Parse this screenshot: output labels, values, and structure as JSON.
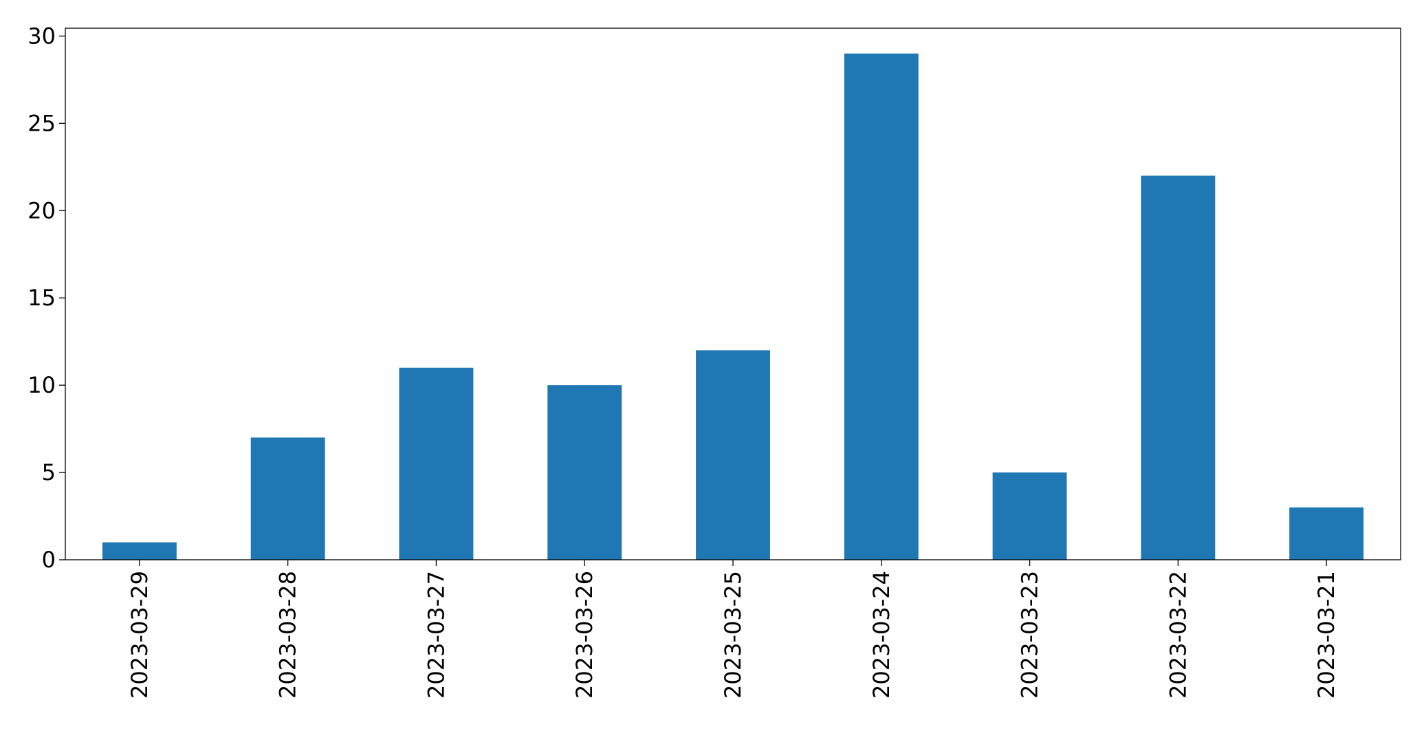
{
  "chart_data": {
    "type": "bar",
    "categories": [
      "2023-03-29",
      "2023-03-28",
      "2023-03-27",
      "2023-03-26",
      "2023-03-25",
      "2023-03-24",
      "2023-03-23",
      "2023-03-22",
      "2023-03-21"
    ],
    "values": [
      1,
      7,
      11,
      10,
      12,
      29,
      5,
      22,
      3
    ],
    "color": "#1f77b4",
    "ylim": [
      0,
      30.45
    ],
    "yticks": [
      0,
      5,
      10,
      15,
      20,
      25,
      30
    ],
    "grid": false
  }
}
